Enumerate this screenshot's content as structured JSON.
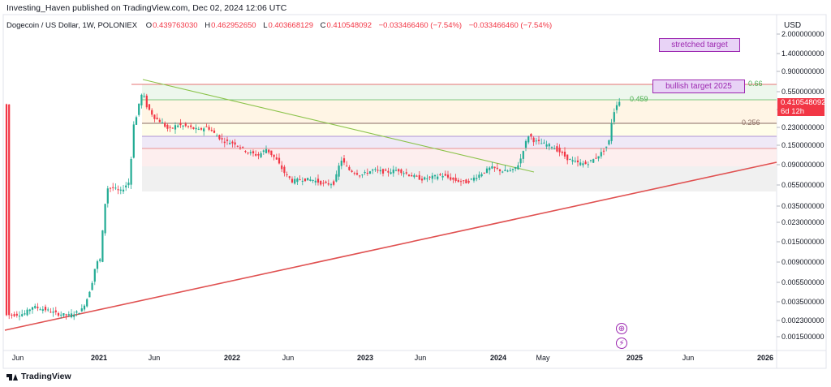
{
  "header": {
    "publisher": "Investing_Haven published on TradingView.com, Dec 02, 2024 12:06 UTC"
  },
  "symbol": {
    "title": "Dogecoin / US Dollar, 1W, POLONIEX",
    "ohlc": [
      {
        "label": "O",
        "value": "0.439763030"
      },
      {
        "label": "H",
        "value": "0.462952650"
      },
      {
        "label": "L",
        "value": "0.403668129"
      },
      {
        "label": "C",
        "value": "0.410548092"
      }
    ],
    "change": "−0.033466460 (−7.54%)",
    "change2": "−0.033466460 (−7.54%)"
  },
  "axis": {
    "currency": "USD",
    "ticks": [
      "2.000000000",
      "1.400000000",
      "0.900000000",
      "0.550000000",
      "0.350000000",
      "0.230000000",
      "0.150000000",
      "0.090000000",
      "0.055000000",
      "0.035000000",
      "0.023000000",
      "0.015000000",
      "0.009000000",
      "0.005500000",
      "0.003500000",
      "0.002300000",
      "0.001500000"
    ],
    "time_labels": [
      "Jun",
      "2021",
      "Jun",
      "2022",
      "Jun",
      "2023",
      "Jun",
      "2024",
      "May",
      "2025",
      "Jun",
      "2026"
    ]
  },
  "price_tag": {
    "price": "0.410548092",
    "countdown": "6d 12h"
  },
  "annotations": {
    "stretched": "stretched target",
    "bullish": "bullish target 2025",
    "fib_066": "0.66",
    "fib_0459": "0.459",
    "fib_0256": "0.256"
  },
  "icons": {
    "plus": "⊕",
    "bolt": "⚡"
  },
  "brand": "TradingView",
  "colors": {
    "up": "#22ab94",
    "down": "#f23645",
    "support": "#e05151",
    "downtrend": "#8bc34a",
    "annotation": "#9c27b0"
  },
  "chart_data": {
    "type": "candlestick",
    "title": "Dogecoin / US Dollar, 1W, POLONIEX",
    "y_scale": "log",
    "ylim": [
      0.0012,
      2.6
    ],
    "x": [
      "2020-06",
      "2020-09",
      "2021-01",
      "2021-03",
      "2021-05",
      "2021-07",
      "2021-10",
      "2022-01",
      "2022-04",
      "2022-06",
      "2022-09",
      "2022-11",
      "2023-01",
      "2023-03",
      "2023-06",
      "2023-09",
      "2023-12",
      "2024-02",
      "2024-03",
      "2024-05",
      "2024-08",
      "2024-10",
      "2024-11",
      "2024-12"
    ],
    "close": [
      0.0026,
      0.0027,
      0.0057,
      0.055,
      0.45,
      0.22,
      0.24,
      0.16,
      0.13,
      0.065,
      0.061,
      0.082,
      0.071,
      0.075,
      0.064,
      0.061,
      0.09,
      0.082,
      0.2,
      0.16,
      0.1,
      0.13,
      0.38,
      0.41
    ],
    "levels": [
      {
        "label": "0.66",
        "value": 0.66
      },
      {
        "label": "0.459",
        "value": 0.459
      },
      {
        "label": "0.256",
        "value": 0.256
      }
    ],
    "annotations": [
      "stretched target",
      "bullish target 2025"
    ]
  }
}
